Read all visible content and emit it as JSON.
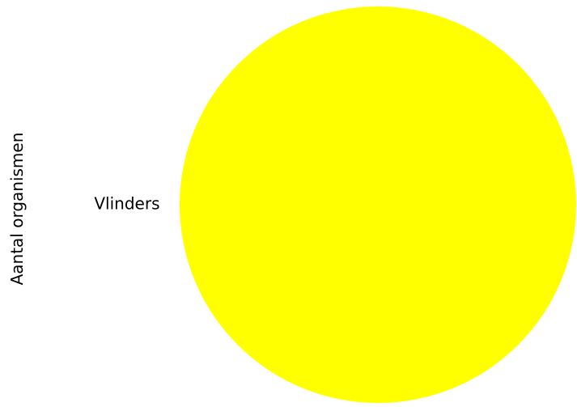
{
  "chart_data": {
    "type": "pie",
    "title": "",
    "ylabel": "Aantal organismen",
    "slices": [
      {
        "label": "Vlinders",
        "value": 1,
        "color": "#ffff00"
      }
    ],
    "start_angle_deg": 90,
    "counterclockwise": true
  }
}
